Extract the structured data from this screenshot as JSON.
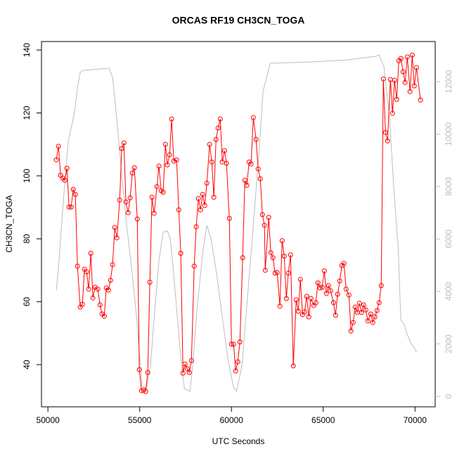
{
  "chart_data": {
    "type": "line",
    "title": "ORCAS RF19 CH3CN_TOGA",
    "xlabel": "UTC Seconds",
    "ylabel": "CH3CN_TOGA",
    "xlim": [
      49650,
      71100
    ],
    "ylim": [
      26.6,
      142.7
    ],
    "y2lim": [
      -400,
      13530
    ],
    "xticks": [
      50000,
      55000,
      60000,
      65000,
      70000
    ],
    "yticks": [
      40,
      60,
      80,
      100,
      120,
      140
    ],
    "y2ticks": [
      0,
      2000,
      4000,
      6000,
      8000,
      10000,
      12000
    ],
    "series": [
      {
        "color": "#ff0000",
        "marker": "circle",
        "x": [
          50460,
          50575,
          50690,
          50805,
          50920,
          51035,
          51150,
          51265,
          51380,
          51495,
          51610,
          51760,
          51880,
          51990,
          52110,
          52220,
          52340,
          52450,
          52570,
          52720,
          52840,
          52950,
          53070,
          53180,
          53300,
          53410,
          53525,
          53640,
          53760,
          53910,
          54020,
          54140,
          54250,
          54370,
          54480,
          54600,
          54710,
          54870,
          54980,
          55100,
          55210,
          55325,
          55440,
          55555,
          55670,
          55785,
          55940,
          56050,
          56170,
          56280,
          56400,
          56510,
          56630,
          56740,
          56860,
          57010,
          57130,
          57240,
          57360,
          57470,
          57590,
          57700,
          57820,
          57970,
          58080,
          58200,
          58310,
          58430,
          58545,
          58660,
          58810,
          58930,
          59040,
          59160,
          59270,
          59390,
          59500,
          59620,
          59730,
          59885,
          60000,
          60115,
          60230,
          60345,
          60460,
          60610,
          60730,
          60840,
          60960,
          61070,
          61190,
          61340,
          61455,
          61570,
          61685,
          61800,
          61840,
          62030,
          62145,
          62260,
          62375,
          62490,
          62640,
          62760,
          62875,
          62990,
          63100,
          63220,
          63370,
          63525,
          63640,
          63755,
          63870,
          63985,
          64100,
          64215,
          64330,
          64480,
          64600,
          64710,
          64830,
          64940,
          65060,
          65170,
          65290,
          65400,
          65560,
          65670,
          65785,
          65900,
          66015,
          66130,
          66245,
          66400,
          66510,
          66630,
          66740,
          66860,
          66970,
          67090,
          67200,
          67320,
          67430,
          67590,
          67700,
          67815,
          67930,
          68045,
          68160,
          68275,
          68390,
          68505,
          68660,
          68775,
          68890,
          69000,
          69120,
          69235,
          69350,
          69460,
          69580,
          69730,
          69850,
          69960,
          70080,
          70300
        ],
        "values": [
          105.1,
          109.4,
          100.2,
          99.3,
          98.6,
          102.4,
          90.1,
          90.1,
          95.7,
          94.1,
          71.3,
          58.3,
          59.2,
          70.3,
          69.5,
          64.0,
          75.4,
          61.2,
          64.6,
          64.0,
          59.0,
          56.1,
          55.4,
          64.4,
          63.7,
          66.8,
          71.8,
          83.6,
          80.3,
          92.3,
          108.7,
          110.5,
          91.7,
          88.3,
          93.0,
          100.9,
          102.6,
          86.3,
          38.4,
          31.7,
          31.9,
          31.5,
          37.5,
          66.2,
          93.2,
          88.1,
          96.6,
          103.1,
          95.3,
          94.8,
          110.0,
          103.5,
          106.7,
          118.1,
          104.7,
          105.1,
          89.2,
          75.4,
          37.3,
          40.2,
          38.7,
          37.5,
          41.3,
          71.3,
          83.8,
          92.8,
          89.2,
          94.1,
          90.6,
          97.7,
          110.0,
          104.4,
          93.2,
          111.6,
          115.2,
          118.1,
          104.4,
          108.0,
          104.0,
          86.5,
          46.5,
          46.5,
          38.0,
          40.9,
          47.2,
          74.0,
          98.6,
          97.0,
          104.4,
          103.8,
          118.5,
          111.6,
          102.2,
          99.1,
          87.7,
          84.3,
          70.0,
          86.8,
          75.6,
          74.0,
          69.1,
          69.3,
          58.6,
          79.4,
          74.5,
          61.0,
          69.1,
          74.9,
          39.6,
          60.6,
          57.0,
          67.1,
          55.9,
          56.8,
          61.7,
          55.2,
          61.0,
          58.8,
          59.7,
          66.0,
          64.4,
          64.6,
          69.8,
          62.6,
          65.1,
          63.5,
          59.7,
          55.7,
          62.4,
          66.6,
          71.5,
          72.2,
          64.0,
          62.1,
          50.7,
          53.4,
          58.3,
          56.6,
          59.5,
          56.6,
          59.0,
          57.4,
          53.9,
          56.1,
          53.4,
          55.2,
          57.2,
          59.7,
          65.1,
          130.8,
          113.8,
          111.1,
          130.6,
          119.9,
          130.4,
          124.3,
          136.6,
          137.3,
          133.1,
          129.7,
          137.8,
          126.8,
          138.4,
          128.6,
          134.4,
          124.1
        ]
      },
      {
        "color": "#bebebe",
        "axis": "y2",
        "x": [
          50460,
          50610,
          50770,
          50920,
          51110,
          51300,
          51460,
          51610,
          51760,
          51920,
          52380,
          53330,
          53525,
          53720,
          53990,
          54290,
          54600,
          54830,
          54980,
          55130,
          55360,
          55590,
          55820,
          56050,
          56280,
          56510,
          56670,
          56820,
          57050,
          57280,
          57440,
          57740,
          57890,
          58120,
          58430,
          58660,
          58890,
          59200,
          59500,
          59810,
          60110,
          60270,
          60570,
          60880,
          61190,
          61490,
          61720,
          62110,
          64410,
          66320,
          67850,
          68040,
          68310,
          68620,
          68850,
          69080,
          69230,
          69390,
          69540,
          69770,
          69920,
          70080
        ],
        "values": [
          4050,
          5180,
          6790,
          8130,
          9745,
          10335,
          10870,
          11760,
          12350,
          12430,
          12455,
          12510,
          12160,
          10820,
          8670,
          6520,
          4640,
          3030,
          1690,
          400,
          295,
          1155,
          3300,
          5180,
          6255,
          6310,
          5990,
          4910,
          3030,
          1155,
          295,
          190,
          1155,
          3300,
          5450,
          6520,
          5990,
          4640,
          3030,
          1420,
          350,
          190,
          1155,
          3840,
          6520,
          9210,
          11625,
          12700,
          12750,
          12830,
          12965,
          13020,
          12565,
          10550,
          7870,
          5720,
          2900,
          2765,
          2440,
          2015,
          1905,
          1690
        ]
      }
    ]
  }
}
